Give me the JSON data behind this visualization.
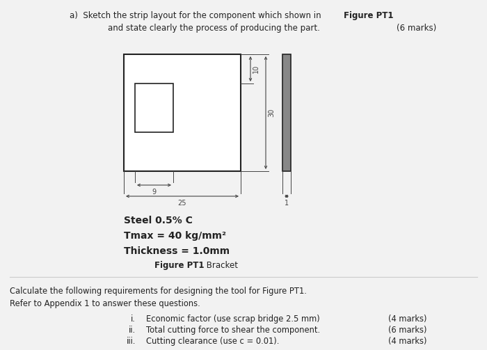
{
  "bg_color": "#f2f2f2",
  "title_a_prefix": "a)  Sketch the strip layout for the component which shown in ",
  "title_a_bold": "Figure PT1",
  "title_b": "and state clearly the process of producing the part.",
  "title_b_marks": "(6 marks)",
  "material_line1": "Steel 0.5% C",
  "material_line2": "Tmax = 40 kg/mm²",
  "material_line3": "Thickness = 1.0mm",
  "figure_label_bold": "Figure PT1",
  "figure_label_normal": " Bracket",
  "calc_line1": "Calculate the following requirements for designing the tool for Figure PT1.",
  "calc_line2": "Refer to Appendix 1 to answer these questions.",
  "items": [
    {
      "roman": "i.",
      "text": "Economic factor (use scrap bridge 2.5 mm)",
      "marks": "(4 marks)"
    },
    {
      "roman": "ii.",
      "text": "Total cutting force to shear the component.",
      "marks": "(6 marks)"
    },
    {
      "roman": "iii.",
      "text": "Cutting clearance (use c = 0.01).",
      "marks": "(4 marks)"
    }
  ],
  "text_color": "#222222",
  "dim_color": "#444444",
  "line_color": "#222222",
  "side_fill": "#888888",
  "white": "#ffffff"
}
